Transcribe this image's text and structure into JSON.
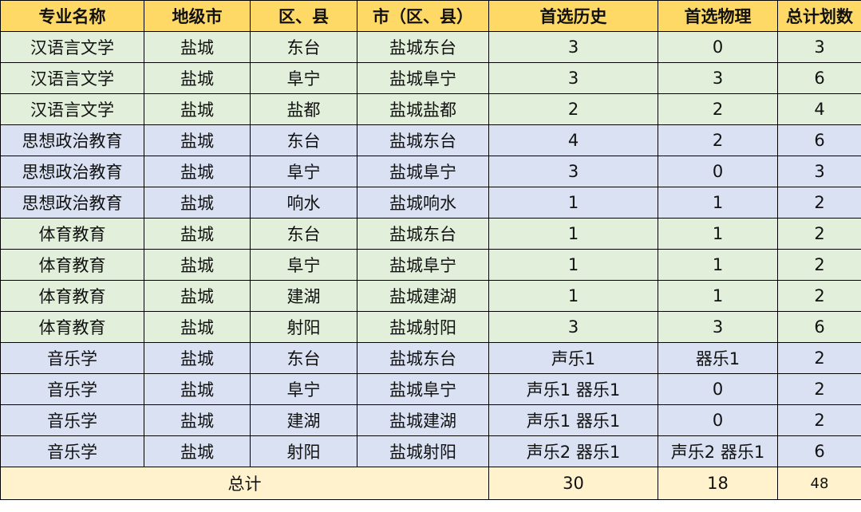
{
  "colors": {
    "header": "#ffd966",
    "group_green": "#e2efda",
    "group_blue": "#d9e1f2",
    "total_row": "#fff2cc"
  },
  "headers": [
    "专业名称",
    "地级市",
    "区、县",
    "市（区、县）",
    "首选历史",
    "首选物理",
    "总计划数"
  ],
  "rows": [
    {
      "band": "green",
      "cells": [
        "汉语言文学",
        "盐城",
        "东台",
        "盐城东台",
        "3",
        "0",
        "3"
      ]
    },
    {
      "band": "green",
      "cells": [
        "汉语言文学",
        "盐城",
        "阜宁",
        "盐城阜宁",
        "3",
        "3",
        "6"
      ]
    },
    {
      "band": "green",
      "cells": [
        "汉语言文学",
        "盐城",
        "盐都",
        "盐城盐都",
        "2",
        "2",
        "4"
      ]
    },
    {
      "band": "blue",
      "cells": [
        "思想政治教育",
        "盐城",
        "东台",
        "盐城东台",
        "4",
        "2",
        "6"
      ]
    },
    {
      "band": "blue",
      "cells": [
        "思想政治教育",
        "盐城",
        "阜宁",
        "盐城阜宁",
        "3",
        "0",
        "3"
      ]
    },
    {
      "band": "blue",
      "cells": [
        "思想政治教育",
        "盐城",
        "响水",
        "盐城响水",
        "1",
        "1",
        "2"
      ]
    },
    {
      "band": "green",
      "cells": [
        "体育教育",
        "盐城",
        "东台",
        "盐城东台",
        "1",
        "1",
        "2"
      ]
    },
    {
      "band": "green",
      "cells": [
        "体育教育",
        "盐城",
        "阜宁",
        "盐城阜宁",
        "1",
        "1",
        "2"
      ]
    },
    {
      "band": "green",
      "cells": [
        "体育教育",
        "盐城",
        "建湖",
        "盐城建湖",
        "1",
        "1",
        "2"
      ]
    },
    {
      "band": "green",
      "cells": [
        "体育教育",
        "盐城",
        "射阳",
        "盐城射阳",
        "3",
        "3",
        "6"
      ]
    },
    {
      "band": "blue",
      "cells": [
        "音乐学",
        "盐城",
        "东台",
        "盐城东台",
        "声乐1",
        "器乐1",
        "2"
      ]
    },
    {
      "band": "blue",
      "cells": [
        "音乐学",
        "盐城",
        "阜宁",
        "盐城阜宁",
        "声乐1 器乐1",
        "0",
        "2"
      ]
    },
    {
      "band": "blue",
      "cells": [
        "音乐学",
        "盐城",
        "建湖",
        "盐城建湖",
        "声乐1 器乐1",
        "0",
        "2"
      ]
    },
    {
      "band": "blue",
      "cells": [
        "音乐学",
        "盐城",
        "射阳",
        "盐城射阳",
        "声乐2 器乐1",
        "声乐2 器乐1",
        "6"
      ]
    }
  ],
  "total": {
    "label": "总计",
    "history": "30",
    "physics": "18",
    "plan": "48"
  }
}
